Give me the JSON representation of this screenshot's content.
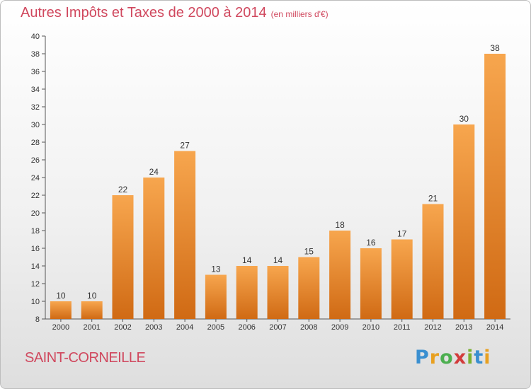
{
  "title": "Autres Impôts et Taxes de 2000 à 2014",
  "unit": "(en milliers d'€)",
  "commune": "SAINT-CORNEILLE",
  "logo": {
    "letters": [
      "P",
      "r",
      "o",
      "x",
      "i",
      "t",
      "i"
    ],
    "colors": [
      "#3a8fd0",
      "#e8a020",
      "#4caf50",
      "#d23c3c",
      "#7ab030",
      "#3a8fd0",
      "#e8a020"
    ]
  },
  "colors": {
    "bar_top": "#f7a64e",
    "bar_bottom": "#d06a14",
    "title": "#d0485e"
  },
  "chart_data": {
    "type": "bar",
    "categories": [
      "2000",
      "2001",
      "2002",
      "2003",
      "2004",
      "2005",
      "2006",
      "2007",
      "2008",
      "2009",
      "2010",
      "2011",
      "2012",
      "2013",
      "2014"
    ],
    "values": [
      10,
      10,
      22,
      24,
      27,
      13,
      14,
      14,
      15,
      18,
      16,
      17,
      21,
      30,
      38
    ],
    "ylim": [
      8,
      40
    ],
    "yticks": [
      8,
      10,
      12,
      14,
      16,
      18,
      20,
      22,
      24,
      26,
      28,
      30,
      32,
      34,
      36,
      38,
      40
    ],
    "grid": false,
    "title": "Autres Impôts et Taxes de 2000 à 2014",
    "xlabel": "",
    "ylabel": ""
  }
}
